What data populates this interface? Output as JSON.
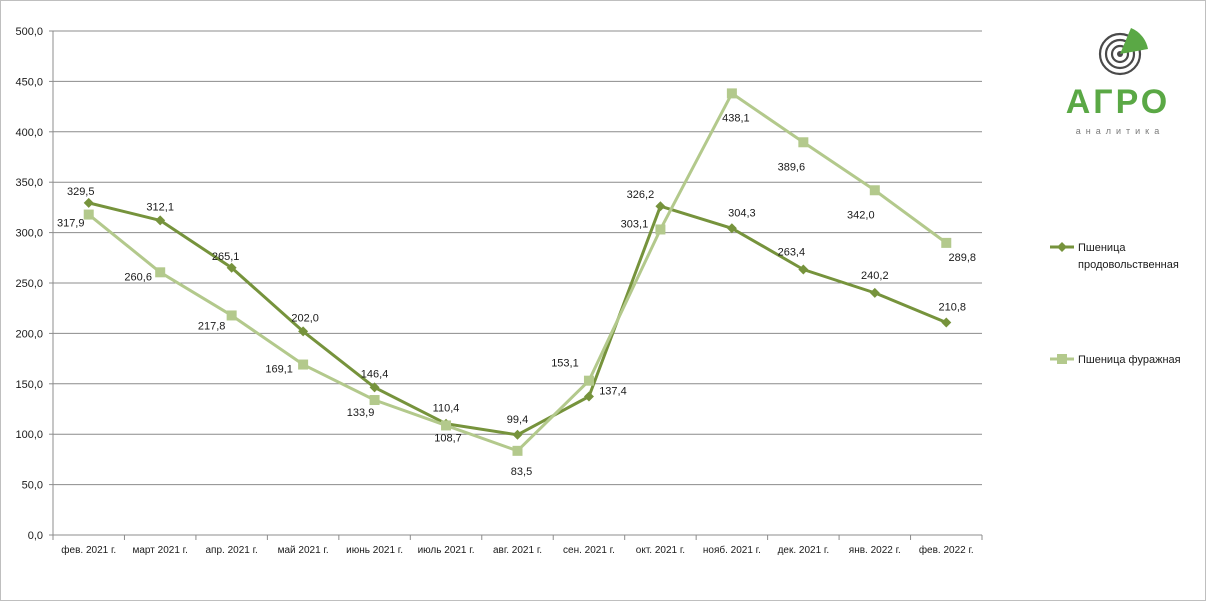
{
  "chart_data": {
    "type": "line",
    "title": "",
    "xlabel": "",
    "ylabel": "",
    "categories": [
      "фев. 2021 г.",
      "март 2021 г.",
      "апр. 2021 г.",
      "май 2021 г.",
      "июнь 2021 г.",
      "июль 2021 г.",
      "авг. 2021 г.",
      "сен. 2021 г.",
      "окт. 2021 г.",
      "нояб. 2021 г.",
      "дек. 2021 г.",
      "янв. 2022 г.",
      "фев. 2022 г."
    ],
    "ylim": [
      0,
      500
    ],
    "yticks": [
      "0,0",
      "50,0",
      "100,0",
      "150,0",
      "200,0",
      "250,0",
      "300,0",
      "350,0",
      "400,0",
      "450,0",
      "500,0"
    ],
    "grid": true,
    "legend_position": "right",
    "series": [
      {
        "name": "Пшеница продовольственная",
        "name_lines": [
          "Пшеница",
          "продовольственная"
        ],
        "color": "#76933c",
        "marker": "diamond",
        "values": [
          329.5,
          312.1,
          265.1,
          202.0,
          146.4,
          110.4,
          99.4,
          137.4,
          326.2,
          304.3,
          263.4,
          240.2,
          210.8
        ],
        "labels": [
          "329,5",
          "312,1",
          "265,1",
          "202,0",
          "146,4",
          "110,4",
          "99,4",
          "137,4",
          "326,2",
          "304,3",
          "263,4",
          "240,2",
          "210,8"
        ]
      },
      {
        "name": "Пшеница фуражная",
        "name_lines": [
          "Пшеница  фуражная"
        ],
        "color": "#b3c98c",
        "marker": "square",
        "values": [
          317.9,
          260.6,
          217.8,
          169.1,
          133.9,
          108.7,
          83.5,
          153.1,
          303.1,
          438.1,
          389.6,
          342.0,
          289.8
        ],
        "labels": [
          "317,9",
          "260,6",
          "217,8",
          "169,1",
          "133,9",
          "108,7",
          "83,5",
          "153,1",
          "303,1",
          "438,1",
          "389,6",
          "342,0",
          "289,8"
        ]
      }
    ]
  },
  "logo": {
    "main": "АГРО",
    "sub": "аналитика",
    "color_main": "#5aa845",
    "color_sub": "#7a7a7a"
  }
}
